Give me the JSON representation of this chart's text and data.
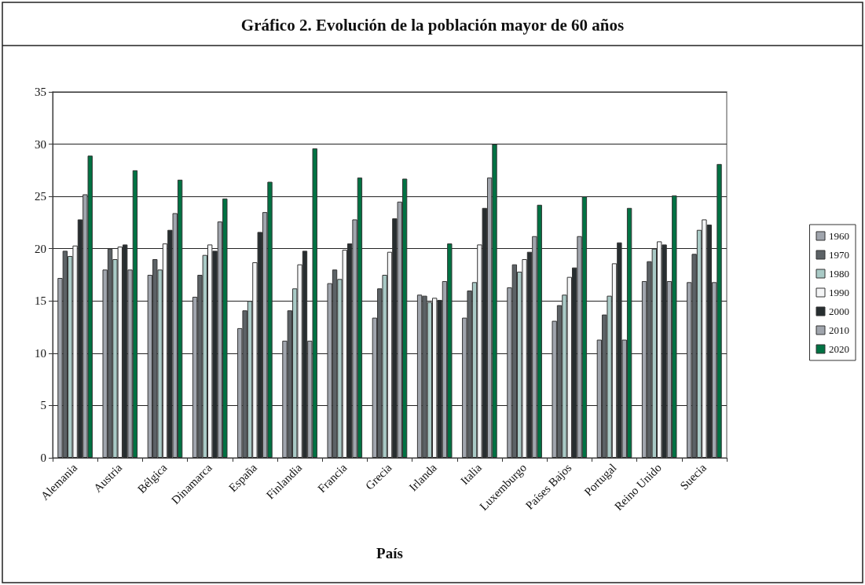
{
  "chart_data": {
    "type": "bar",
    "title": "Gráfico 2. Evolución de la población mayor de 60 años",
    "xlabel": "País",
    "categories": [
      "Alemania",
      "Austria",
      "Bélgica",
      "Dinamarca",
      "España",
      "Finlandia",
      "Francia",
      "Grecia",
      "Irlanda",
      "Italia",
      "Luxemburgo",
      "Países Bajos",
      "Portugal",
      "Reino Unido",
      "Suecia"
    ],
    "series": [
      {
        "name": "1960",
        "color": "#a0a5ad",
        "values": [
          17.2,
          18.0,
          17.5,
          15.4,
          12.4,
          11.2,
          16.7,
          13.4,
          15.6,
          13.4,
          16.3,
          13.1,
          11.3,
          16.9,
          16.8
        ]
      },
      {
        "name": "1970",
        "color": "#5c6266",
        "values": [
          19.8,
          20.0,
          19.0,
          17.5,
          14.1,
          14.1,
          18.0,
          16.2,
          15.5,
          16.0,
          18.5,
          14.6,
          13.7,
          18.8,
          19.5
        ]
      },
      {
        "name": "1980",
        "color": "#a9cac6",
        "values": [
          19.3,
          19.0,
          18.0,
          19.4,
          15.0,
          16.2,
          17.1,
          17.5,
          14.9,
          16.8,
          17.8,
          15.6,
          15.5,
          20.0,
          21.8
        ]
      },
      {
        "name": "1990",
        "color": "#f4f5f6",
        "values": [
          20.3,
          20.2,
          20.5,
          20.4,
          18.7,
          18.5,
          19.9,
          19.7,
          15.3,
          20.4,
          19.0,
          17.3,
          18.6,
          20.7,
          22.8
        ]
      },
      {
        "name": "2000",
        "color": "#272e30",
        "values": [
          22.8,
          20.4,
          21.8,
          19.8,
          21.6,
          19.8,
          20.5,
          22.9,
          15.1,
          23.9,
          19.7,
          18.2,
          20.6,
          20.4,
          22.3
        ]
      },
      {
        "name": "2010",
        "color": "#a0a5ad",
        "values": [
          25.2,
          18.0,
          23.4,
          22.6,
          23.5,
          11.2,
          22.8,
          24.5,
          16.9,
          26.8,
          21.2,
          21.2,
          11.3,
          16.9,
          16.8
        ]
      },
      {
        "name": "2020",
        "color": "#007243",
        "values": [
          28.9,
          27.5,
          26.6,
          24.8,
          26.4,
          29.6,
          26.8,
          26.7,
          20.5,
          30.0,
          24.2,
          25.0,
          23.9,
          25.1,
          28.1
        ]
      }
    ],
    "ylim": [
      0,
      35
    ],
    "yticks": [
      0,
      5,
      10,
      15,
      20,
      25,
      30,
      35
    ],
    "grid": "y",
    "legend": "right"
  }
}
